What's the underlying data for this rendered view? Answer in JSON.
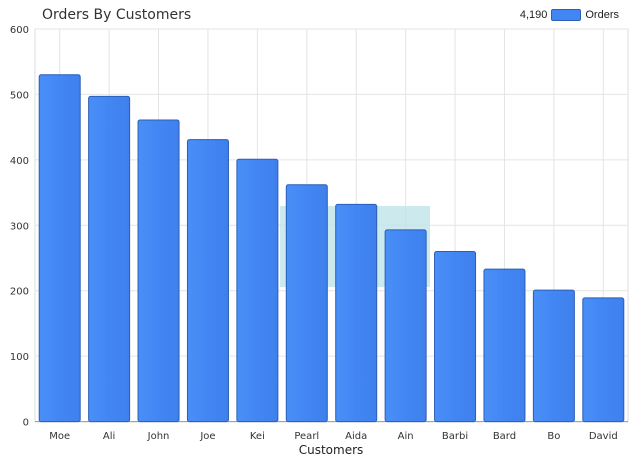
{
  "chart_data": {
    "type": "bar",
    "title": "Orders By Customers",
    "xlabel": "Customers",
    "ylabel": "",
    "ylim": [
      0,
      600
    ],
    "yticks": [
      0,
      100,
      200,
      300,
      400,
      500,
      600
    ],
    "grid": true,
    "legend_position": "top-right",
    "categories": [
      "Moe",
      "Ali",
      "John",
      "Joe",
      "Kei",
      "Pearl",
      "Aida",
      "Ain",
      "Barbi",
      "Bard",
      "Bo",
      "David"
    ],
    "series": [
      {
        "name": "Orders",
        "total_label": "4,190",
        "color": "#4286f4",
        "values": [
          530,
          497,
          461,
          431,
          401,
          362,
          332,
          293,
          260,
          233,
          201,
          189
        ]
      }
    ]
  }
}
